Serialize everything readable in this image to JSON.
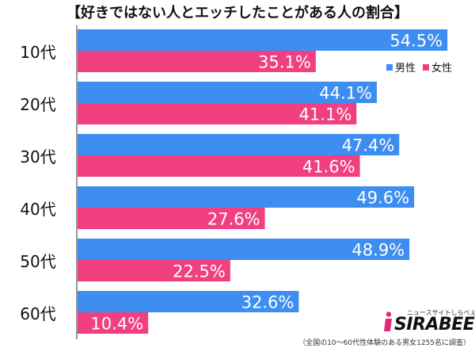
{
  "chart_data": {
    "type": "bar",
    "orientation": "horizontal",
    "title": "【好きではない人とエッチしたことがある人の割合】",
    "categories": [
      "10代",
      "20代",
      "30代",
      "40代",
      "50代",
      "60代"
    ],
    "series": [
      {
        "name": "男性",
        "values": [
          54.5,
          44.1,
          47.4,
          49.6,
          48.9,
          32.6
        ],
        "color": "#3d8ef0"
      },
      {
        "name": "女性",
        "values": [
          35.1,
          41.1,
          41.6,
          27.6,
          22.5,
          10.4
        ],
        "color": "#f0407f"
      }
    ],
    "value_suffix": "%",
    "xlim": [
      0,
      56.0
    ],
    "legend_position": "top-right",
    "grid": false
  },
  "footnote": "（全国の10〜60代性体験のある男女1255名に調査）",
  "logo": {
    "text": "SIRABEE",
    "tagline": "ニュースサイトしらべぇ",
    "accent_color": "#e8237a"
  }
}
